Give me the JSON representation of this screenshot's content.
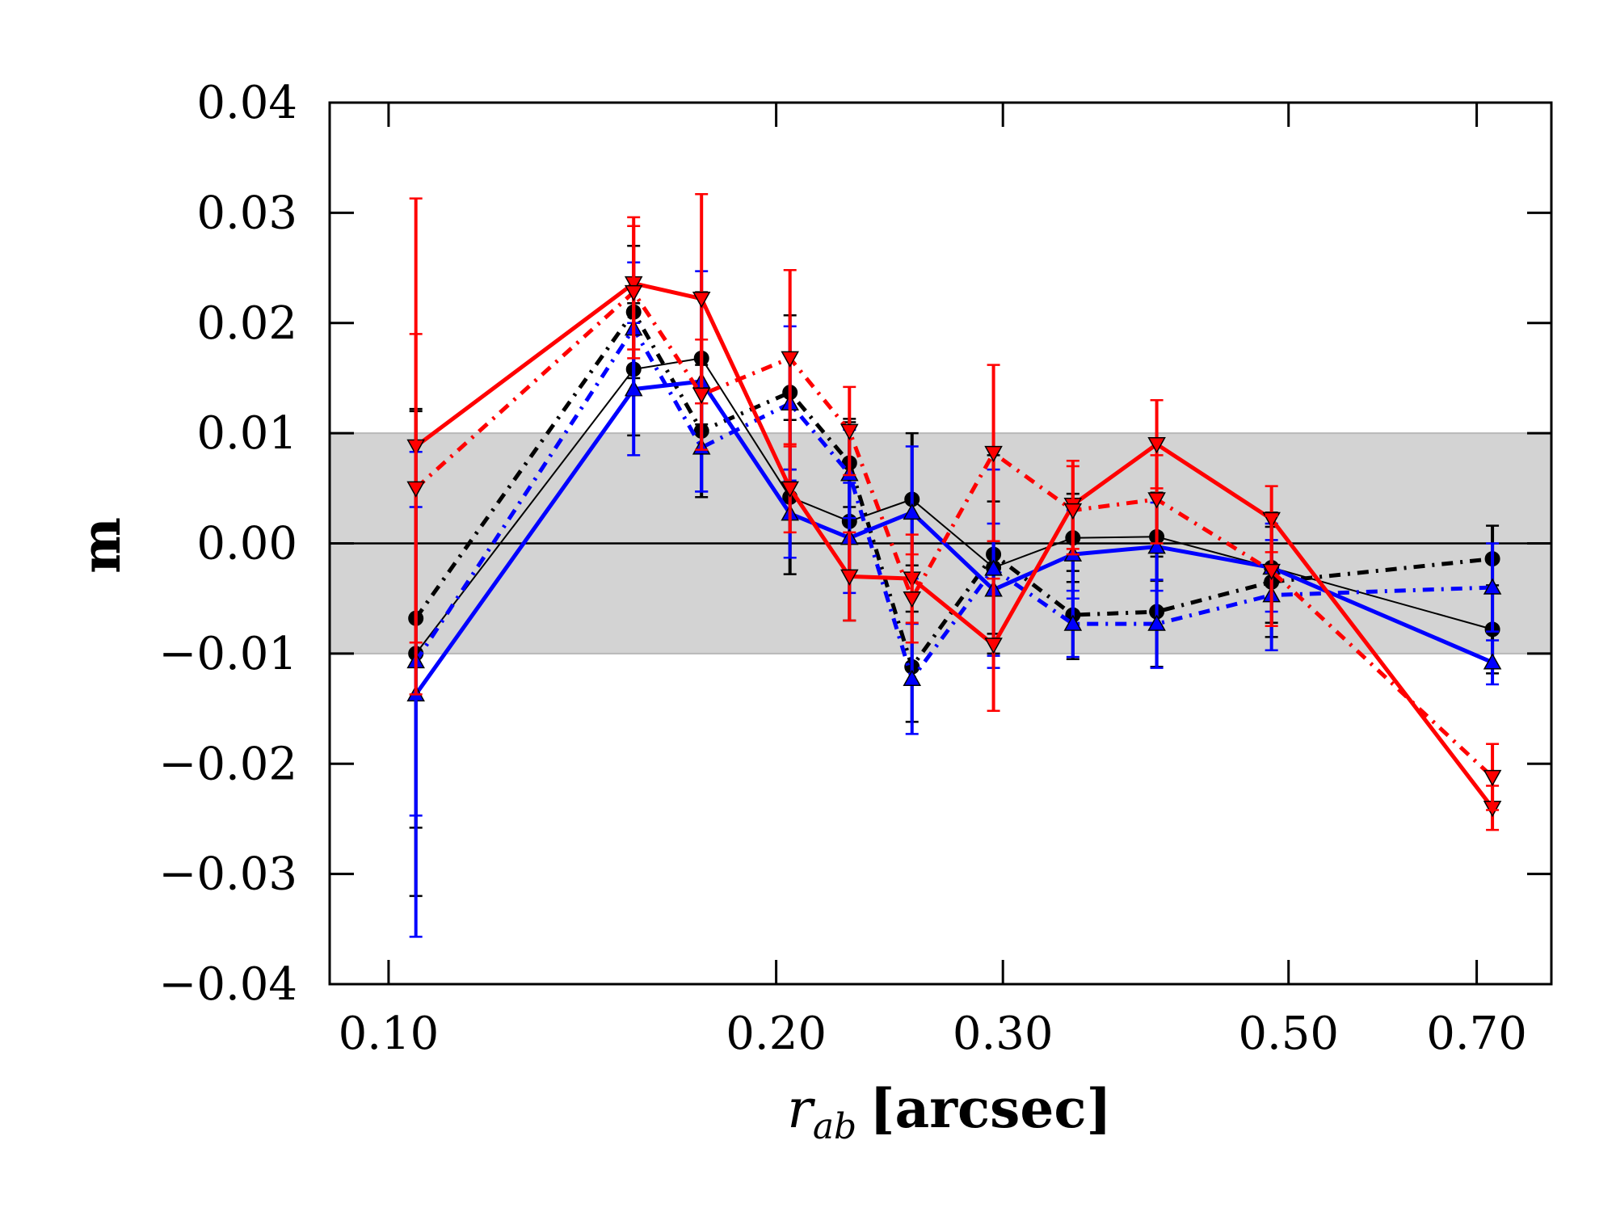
{
  "chart_data": {
    "type": "line",
    "title": "",
    "ylabel": "m",
    "xlabel_var": "r",
    "xlabel_sub": "ab",
    "xlabel_unit": "[arcsec]",
    "xscale": "log",
    "xlim": [
      0.09,
      0.8
    ],
    "ylim": [
      -0.04,
      0.04
    ],
    "xticks": [
      0.1,
      0.2,
      0.3,
      0.5,
      0.7
    ],
    "xtick_labels": [
      "0.10",
      "0.20",
      "0.30",
      "0.50",
      "0.70"
    ],
    "yticks": [
      -0.04,
      -0.03,
      -0.02,
      -0.01,
      0.0,
      0.01,
      0.02,
      0.03,
      0.04
    ],
    "ytick_labels": [
      "−0.04",
      "−0.03",
      "−0.02",
      "−0.01",
      "0.00",
      "0.01",
      "0.02",
      "0.03",
      "0.04"
    ],
    "band": [
      -0.01,
      0.01
    ],
    "band_color": "#d3d3d3",
    "zero_line": 0.0,
    "series": [
      {
        "name": "black-solid",
        "color": "#000000",
        "style": "solid",
        "width": 2,
        "marker": "circle",
        "x": [
          0.105,
          0.155,
          0.175,
          0.205,
          0.228,
          0.255,
          0.295,
          0.34,
          0.395,
          0.485,
          0.72
        ],
        "y": [
          -0.01,
          0.0158,
          0.0168,
          0.0042,
          0.002,
          0.004,
          -0.0022,
          0.0005,
          0.0006,
          -0.0022,
          -0.0078
        ],
        "err": [
          0.022,
          0.006,
          0.006,
          0.007,
          0.009,
          0.006,
          0.006,
          0.004,
          0.004,
          0.005,
          0.004
        ]
      },
      {
        "name": "black-dashdot",
        "color": "#000000",
        "style": "dashdot",
        "width": 5,
        "marker": "circle",
        "x": [
          0.105,
          0.155,
          0.175,
          0.205,
          0.228,
          0.255,
          0.295,
          0.34,
          0.395,
          0.485,
          0.72
        ],
        "y": [
          -0.0068,
          0.021,
          0.0102,
          0.0137,
          0.0073,
          -0.0112,
          -0.001,
          -0.0065,
          -0.0062,
          -0.0035,
          -0.0014
        ],
        "err": [
          0.019,
          0.006,
          0.006,
          0.007,
          0.004,
          0.005,
          0.009,
          0.004,
          0.005,
          0.005,
          0.003
        ]
      },
      {
        "name": "blue-solid",
        "color": "#0000ff",
        "style": "solid",
        "width": 5,
        "marker": "triangle-up",
        "x": [
          0.105,
          0.155,
          0.175,
          0.205,
          0.228,
          0.255,
          0.295,
          0.34,
          0.395,
          0.485,
          0.72
        ],
        "y": [
          -0.0137,
          0.014,
          0.0147,
          0.0027,
          0.0005,
          0.0028,
          -0.0042,
          -0.001,
          -0.0003,
          -0.0022,
          -0.0108
        ],
        "err": [
          0.022,
          0.006,
          0.01,
          0.004,
          0.005,
          0.006,
          0.006,
          0.004,
          0.004,
          0.004,
          0.002
        ]
      },
      {
        "name": "blue-dashdot",
        "color": "#0000ff",
        "style": "dashdot",
        "width": 5,
        "marker": "triangle-up",
        "x": [
          0.105,
          0.155,
          0.175,
          0.205,
          0.228,
          0.255,
          0.295,
          0.34,
          0.395,
          0.485,
          0.72
        ],
        "y": [
          -0.0107,
          0.0195,
          0.0087,
          0.0127,
          0.0063,
          -0.0123,
          -0.0023,
          -0.0073,
          -0.0073,
          -0.0047,
          -0.004
        ],
        "err": [
          0.014,
          0.006,
          0.004,
          0.007,
          0.004,
          0.005,
          0.009,
          0.003,
          0.004,
          0.005,
          0.004
        ]
      },
      {
        "name": "red-solid",
        "color": "#ff0000",
        "style": "solid",
        "width": 5,
        "marker": "triangle-down",
        "x": [
          0.105,
          0.155,
          0.175,
          0.205,
          0.228,
          0.255,
          0.295,
          0.34,
          0.395,
          0.485,
          0.72
        ],
        "y": [
          0.0088,
          0.0236,
          0.0222,
          0.005,
          -0.003,
          -0.0032,
          -0.0092,
          0.0035,
          0.009,
          0.0022,
          -0.024
        ],
        "err": [
          0.0225,
          0.006,
          0.0095,
          0.004,
          0.004,
          0.004,
          0.006,
          0.004,
          0.004,
          0.003,
          0.002
        ]
      },
      {
        "name": "red-dashdot",
        "color": "#ff0000",
        "style": "dashdot",
        "width": 5,
        "marker": "triangle-down",
        "x": [
          0.105,
          0.155,
          0.175,
          0.205,
          0.228,
          0.255,
          0.295,
          0.34,
          0.395,
          0.485,
          0.72
        ],
        "y": [
          0.005,
          0.0228,
          0.0135,
          0.0168,
          0.0102,
          -0.005,
          0.0082,
          0.003,
          0.004,
          -0.0025,
          -0.0212
        ],
        "err": [
          0.014,
          0.006,
          0.005,
          0.008,
          0.004,
          0.004,
          0.008,
          0.004,
          0.004,
          0.005,
          0.003
        ]
      }
    ]
  }
}
